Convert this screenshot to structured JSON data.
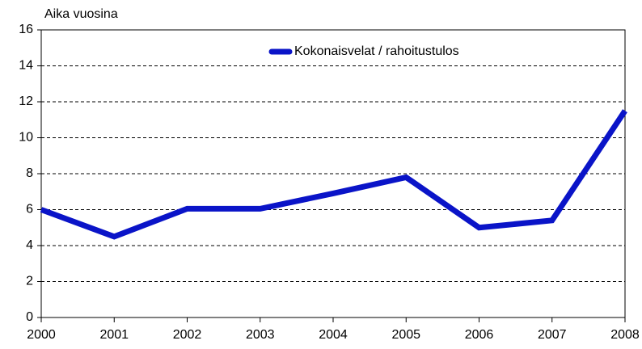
{
  "chart_data": {
    "type": "line",
    "y_axis_label": "Aika vuosina",
    "x": [
      2000,
      2001,
      2002,
      2003,
      2004,
      2005,
      2006,
      2007,
      2008
    ],
    "series": [
      {
        "name": "Kokonaisvelat / rahoitustulos",
        "color": "#0a14c8",
        "values": [
          6.0,
          4.5,
          6.05,
          6.05,
          6.9,
          7.8,
          5.0,
          5.4,
          11.5
        ]
      }
    ],
    "xlim": [
      2000,
      2008
    ],
    "xticks": [
      2000,
      2001,
      2002,
      2003,
      2004,
      2005,
      2006,
      2007,
      2008
    ],
    "ylim": [
      0,
      16
    ],
    "yticks": [
      0,
      2,
      4,
      6,
      8,
      10,
      12,
      14,
      16
    ],
    "grid": true,
    "legend": "top"
  }
}
